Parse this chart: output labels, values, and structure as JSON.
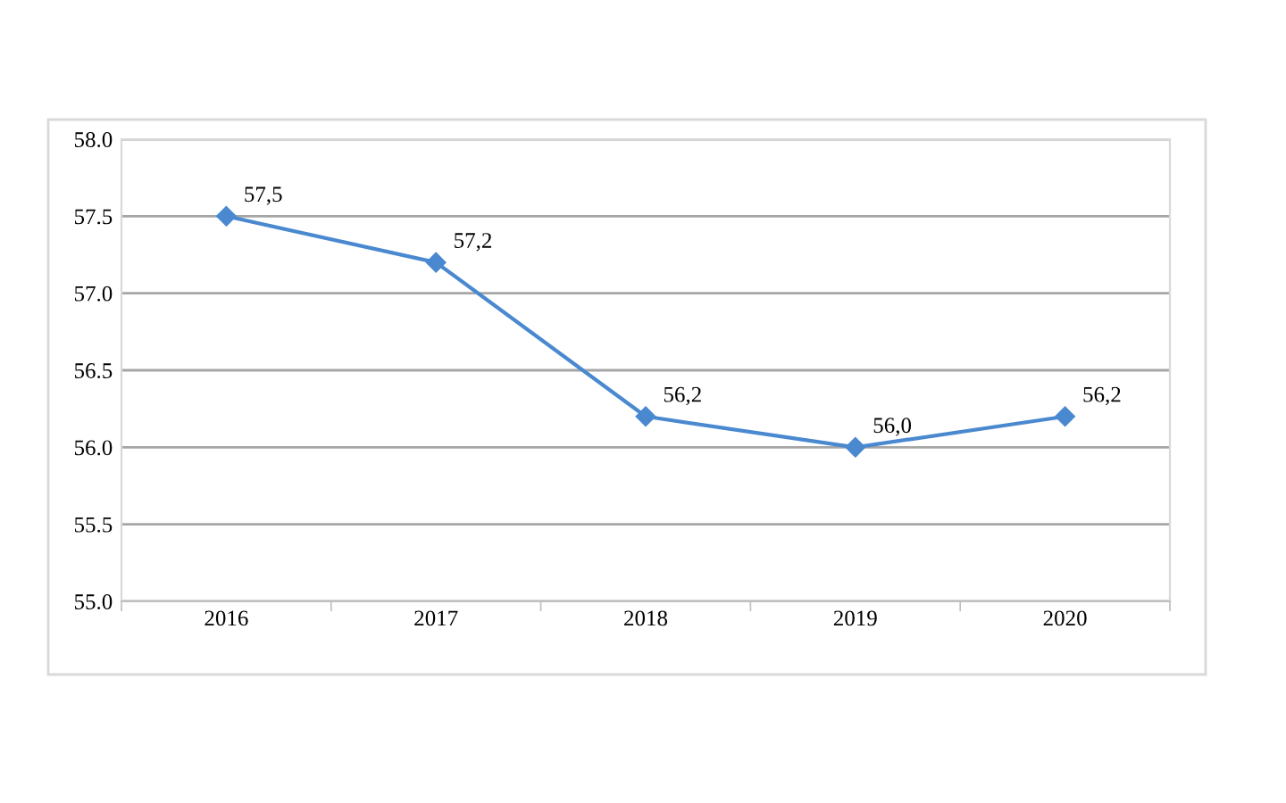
{
  "chart_data": {
    "type": "line",
    "categories": [
      "2016",
      "2017",
      "2018",
      "2019",
      "2020"
    ],
    "series": [
      {
        "color": "#4a89d0",
        "values": [
          57.5,
          57.2,
          56.2,
          56.0,
          56.2
        ],
        "value_labels": [
          "57,5",
          "57,2",
          "56,2",
          "56,0",
          "56,2"
        ]
      }
    ],
    "ylim": [
      55.0,
      58.0
    ],
    "yticks": [
      {
        "value": 55.0,
        "label": "55.0"
      },
      {
        "value": 55.5,
        "label": "55.5"
      },
      {
        "value": 56.0,
        "label": "56.0"
      },
      {
        "value": 56.5,
        "label": "56.5"
      },
      {
        "value": 57.0,
        "label": "57.0"
      },
      {
        "value": 57.5,
        "label": "57.5"
      },
      {
        "value": 58.0,
        "label": "58.0"
      }
    ],
    "grid": "y",
    "legend": false,
    "marker": "diamond",
    "line_style": "solid"
  }
}
